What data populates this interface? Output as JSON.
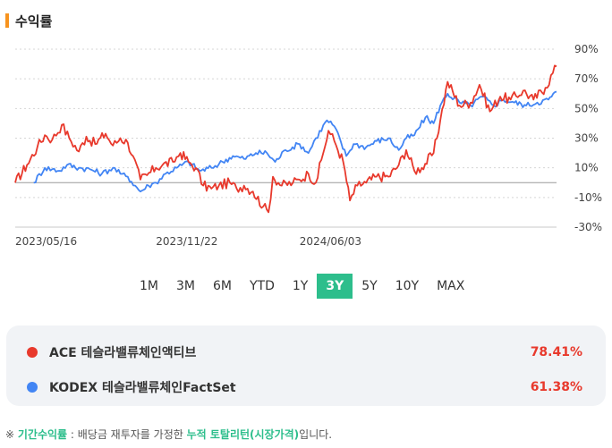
{
  "section": {
    "title": "수익률"
  },
  "chart_data": {
    "type": "line",
    "y_ticks": [
      "90%",
      "70%",
      "50%",
      "30%",
      "10%",
      "-10%",
      "-30%"
    ],
    "y_tick_values": [
      90,
      70,
      50,
      30,
      10,
      -10,
      -30
    ],
    "ylim": [
      -30,
      90
    ],
    "x_ticks": [
      "2023/05/16",
      "2023/11/22",
      "2024/06/03"
    ],
    "baseline": 0,
    "series": [
      {
        "name": "ACE 테슬라밸류체인액티브",
        "color": "#e8392c",
        "start_date": "2023-05-16",
        "end_date": "2025-05-16",
        "points": [
          {
            "x": "2023-05-16",
            "y": 0
          },
          {
            "x": "2023-06-01",
            "y": 12
          },
          {
            "x": "2023-06-15",
            "y": 24
          },
          {
            "x": "2023-06-25",
            "y": 32
          },
          {
            "x": "2023-07-05",
            "y": 29
          },
          {
            "x": "2023-07-18",
            "y": 39
          },
          {
            "x": "2023-07-28",
            "y": 30
          },
          {
            "x": "2023-08-10",
            "y": 21
          },
          {
            "x": "2023-08-20",
            "y": 31
          },
          {
            "x": "2023-09-01",
            "y": 26
          },
          {
            "x": "2023-09-15",
            "y": 33
          },
          {
            "x": "2023-09-25",
            "y": 25
          },
          {
            "x": "2023-10-05",
            "y": 30
          },
          {
            "x": "2023-10-15",
            "y": 27
          },
          {
            "x": "2023-10-22",
            "y": 18
          },
          {
            "x": "2023-11-01",
            "y": 2
          },
          {
            "x": "2023-11-10",
            "y": 5
          },
          {
            "x": "2023-11-22",
            "y": 10
          },
          {
            "x": "2023-12-01",
            "y": 12
          },
          {
            "x": "2023-12-15",
            "y": 14
          },
          {
            "x": "2023-12-25",
            "y": 20
          },
          {
            "x": "2024-01-05",
            "y": 14
          },
          {
            "x": "2024-01-15",
            "y": 10
          },
          {
            "x": "2024-01-25",
            "y": -2
          },
          {
            "x": "2024-02-05",
            "y": -4
          },
          {
            "x": "2024-02-15",
            "y": -2
          },
          {
            "x": "2024-03-01",
            "y": 0
          },
          {
            "x": "2024-03-10",
            "y": -4
          },
          {
            "x": "2024-03-20",
            "y": -2
          },
          {
            "x": "2024-04-01",
            "y": -6
          },
          {
            "x": "2024-04-15",
            "y": -16
          },
          {
            "x": "2024-04-22",
            "y": -20
          },
          {
            "x": "2024-04-28",
            "y": 4
          },
          {
            "x": "2024-05-10",
            "y": -2
          },
          {
            "x": "2024-05-25",
            "y": 0
          },
          {
            "x": "2024-06-03",
            "y": 2
          },
          {
            "x": "2024-06-15",
            "y": 6
          },
          {
            "x": "2024-06-25",
            "y": 0
          },
          {
            "x": "2024-07-05",
            "y": 20
          },
          {
            "x": "2024-07-12",
            "y": 35
          },
          {
            "x": "2024-07-20",
            "y": 28
          },
          {
            "x": "2024-08-01",
            "y": 14
          },
          {
            "x": "2024-08-10",
            "y": -12
          },
          {
            "x": "2024-08-20",
            "y": -2
          },
          {
            "x": "2024-09-01",
            "y": 0
          },
          {
            "x": "2024-09-15",
            "y": 4
          },
          {
            "x": "2024-10-01",
            "y": 4
          },
          {
            "x": "2024-10-15",
            "y": 12
          },
          {
            "x": "2024-10-25",
            "y": 22
          },
          {
            "x": "2024-11-05",
            "y": 8
          },
          {
            "x": "2024-11-15",
            "y": 10
          },
          {
            "x": "2024-12-01",
            "y": 20
          },
          {
            "x": "2024-12-10",
            "y": 42
          },
          {
            "x": "2024-12-20",
            "y": 68
          },
          {
            "x": "2025-01-05",
            "y": 52
          },
          {
            "x": "2025-01-20",
            "y": 54
          },
          {
            "x": "2025-02-01",
            "y": 66
          },
          {
            "x": "2025-02-15",
            "y": 48
          },
          {
            "x": "2025-03-01",
            "y": 58
          },
          {
            "x": "2025-03-15",
            "y": 56
          },
          {
            "x": "2025-04-01",
            "y": 62
          },
          {
            "x": "2025-04-15",
            "y": 56
          },
          {
            "x": "2025-05-01",
            "y": 64
          },
          {
            "x": "2025-05-16",
            "y": 78.41
          }
        ]
      },
      {
        "name": "KODEX 테슬라밸류체인FactSet",
        "color": "#4285f4",
        "start_date": "2023-05-16",
        "end_date": "2025-05-16",
        "points": [
          {
            "x": "2023-06-10",
            "y": 0
          },
          {
            "x": "2023-06-25",
            "y": 10
          },
          {
            "x": "2023-07-15",
            "y": 8
          },
          {
            "x": "2023-07-25",
            "y": 12
          },
          {
            "x": "2023-08-10",
            "y": 10
          },
          {
            "x": "2023-08-25",
            "y": 9
          },
          {
            "x": "2023-09-10",
            "y": 6
          },
          {
            "x": "2023-09-25",
            "y": 10
          },
          {
            "x": "2023-10-05",
            "y": 6
          },
          {
            "x": "2023-10-15",
            "y": 4
          },
          {
            "x": "2023-10-25",
            "y": -2
          },
          {
            "x": "2023-11-01",
            "y": -6
          },
          {
            "x": "2023-11-12",
            "y": -2
          },
          {
            "x": "2023-11-22",
            "y": 0
          },
          {
            "x": "2023-12-05",
            "y": 6
          },
          {
            "x": "2023-12-20",
            "y": 10
          },
          {
            "x": "2024-01-05",
            "y": 14
          },
          {
            "x": "2024-01-20",
            "y": 8
          },
          {
            "x": "2024-02-05",
            "y": 10
          },
          {
            "x": "2024-02-20",
            "y": 14
          },
          {
            "x": "2024-03-05",
            "y": 18
          },
          {
            "x": "2024-03-20",
            "y": 16
          },
          {
            "x": "2024-04-05",
            "y": 20
          },
          {
            "x": "2024-04-20",
            "y": 20
          },
          {
            "x": "2024-05-01",
            "y": 14
          },
          {
            "x": "2024-05-15",
            "y": 22
          },
          {
            "x": "2024-06-03",
            "y": 26
          },
          {
            "x": "2024-06-15",
            "y": 20
          },
          {
            "x": "2024-06-25",
            "y": 30
          },
          {
            "x": "2024-07-10",
            "y": 42
          },
          {
            "x": "2024-07-20",
            "y": 38
          },
          {
            "x": "2024-08-05",
            "y": 18
          },
          {
            "x": "2024-08-15",
            "y": 26
          },
          {
            "x": "2024-09-01",
            "y": 24
          },
          {
            "x": "2024-09-15",
            "y": 28
          },
          {
            "x": "2024-10-01",
            "y": 30
          },
          {
            "x": "2024-10-15",
            "y": 22
          },
          {
            "x": "2024-10-25",
            "y": 30
          },
          {
            "x": "2024-11-05",
            "y": 32
          },
          {
            "x": "2024-11-20",
            "y": 44
          },
          {
            "x": "2024-12-01",
            "y": 40
          },
          {
            "x": "2024-12-10",
            "y": 52
          },
          {
            "x": "2024-12-20",
            "y": 60
          },
          {
            "x": "2025-01-05",
            "y": 54
          },
          {
            "x": "2025-01-20",
            "y": 52
          },
          {
            "x": "2025-02-05",
            "y": 58
          },
          {
            "x": "2025-02-20",
            "y": 52
          },
          {
            "x": "2025-03-05",
            "y": 56
          },
          {
            "x": "2025-03-20",
            "y": 54
          },
          {
            "x": "2025-04-05",
            "y": 52
          },
          {
            "x": "2025-04-20",
            "y": 54
          },
          {
            "x": "2025-05-05",
            "y": 56
          },
          {
            "x": "2025-05-16",
            "y": 61.38
          }
        ]
      }
    ]
  },
  "periods": [
    "1M",
    "3M",
    "6M",
    "YTD",
    "1Y",
    "3Y",
    "5Y",
    "10Y",
    "MAX"
  ],
  "active_period": "3Y",
  "legend": [
    {
      "name": "ACE 테슬라밸류체인액티브",
      "value": "78.41%",
      "dot_color": "#e8392c",
      "value_color": "#e8392c"
    },
    {
      "name": "KODEX 테슬라밸류체인FactSet",
      "value": "61.38%",
      "dot_color": "#4285f4",
      "value_color": "#e8392c"
    }
  ],
  "footnote": {
    "prefix": "※ ",
    "term1": "기간수익률",
    "middle": " : 배당금 재투자를 가정한 ",
    "term2": "누적 토탈리턴(시장가격)",
    "suffix": "입니다."
  }
}
